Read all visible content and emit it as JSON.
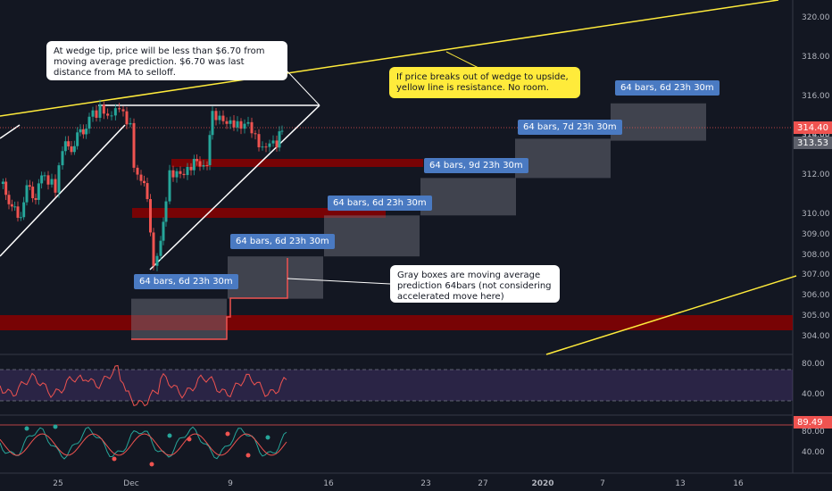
{
  "chart_data": {
    "type": "candlestick",
    "symbol_panel": "price",
    "price_axis": {
      "ticks": [
        304,
        305,
        306,
        307,
        308,
        309,
        310,
        312,
        314,
        316,
        318,
        320
      ],
      "last_price": "314.40",
      "last_price_color": "#ef5350",
      "ma_price": "313.53",
      "ma_price_color": "#5d606b",
      "partial_label": "314.00"
    },
    "x_axis": {
      "ticks": [
        "25",
        "Dec",
        "9",
        "16",
        "23",
        "27",
        "2020",
        "7",
        "13",
        "16"
      ]
    },
    "annotations": {
      "wedge_note": "At wedge tip, price will be less than $6.70 from moving average prediction.  $6.70 was last distance from MA to selloff.",
      "resistance_note": "If price breaks out of wedge to upside, yellow line is resistance.  No room.",
      "gray_box_note": "Gray boxes are moving average prediction 64bars (not considering accelerated move here)"
    },
    "bar_ranges": [
      "64 bars, 6d 23h 30m",
      "64 bars, 6d 23h 30m",
      "64 bars, 6d 23h 30m",
      "64 bars, 9d 23h 30m",
      "64 bars, 7d 23h 30m",
      "64 bars, 6d 23h 30m"
    ],
    "prediction_boxes": [
      {
        "y_low": 303.8,
        "y_high": 305.8
      },
      {
        "y_low": 305.8,
        "y_high": 307.9
      },
      {
        "y_low": 307.9,
        "y_high": 309.9
      },
      {
        "y_low": 309.9,
        "y_high": 311.8
      },
      {
        "y_low": 311.8,
        "y_high": 313.8
      },
      {
        "y_low": 313.7,
        "y_high": 315.6
      }
    ],
    "rsi_panel": {
      "ticks": [
        40,
        80
      ],
      "upper_band": 70,
      "lower_band": 30
    },
    "stoch_panel": {
      "ticks": [
        40,
        80
      ],
      "last_value": "89.49",
      "last_value_color": "#ef5350"
    },
    "colors": {
      "background": "#131722",
      "up": "#26a69a",
      "down": "#ef5350",
      "resistance": "#ffeb3b",
      "zone": "#8b0000",
      "box": "#787b86",
      "rsi_band": "#7e57c2",
      "label": "#4a7ac2"
    }
  }
}
